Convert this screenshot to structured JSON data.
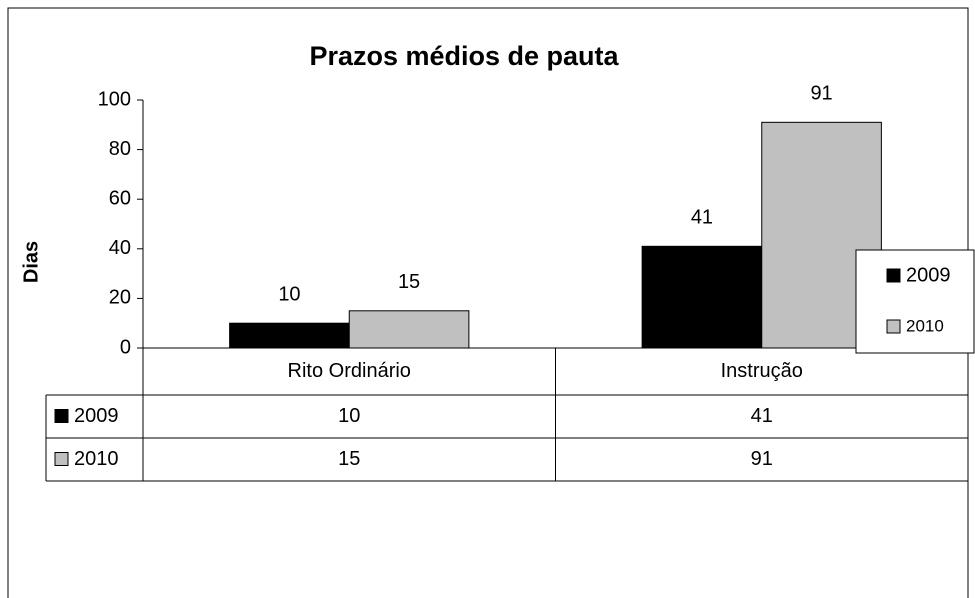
{
  "chart_data": {
    "type": "bar",
    "title": "Prazos médios de pauta",
    "y_label": "Dias",
    "categories": [
      "Rito Ordinário",
      "Instrução"
    ],
    "series": [
      {
        "name": "2009",
        "color": "#000000",
        "values": [
          10,
          41
        ]
      },
      {
        "name": "2010",
        "color": "#c0c0c0",
        "values": [
          15,
          91
        ]
      }
    ],
    "ylim": [
      0,
      100
    ],
    "yticks": [
      0,
      20,
      40,
      60,
      80,
      100
    ],
    "grid": false,
    "legend": "right",
    "data_table": true
  }
}
